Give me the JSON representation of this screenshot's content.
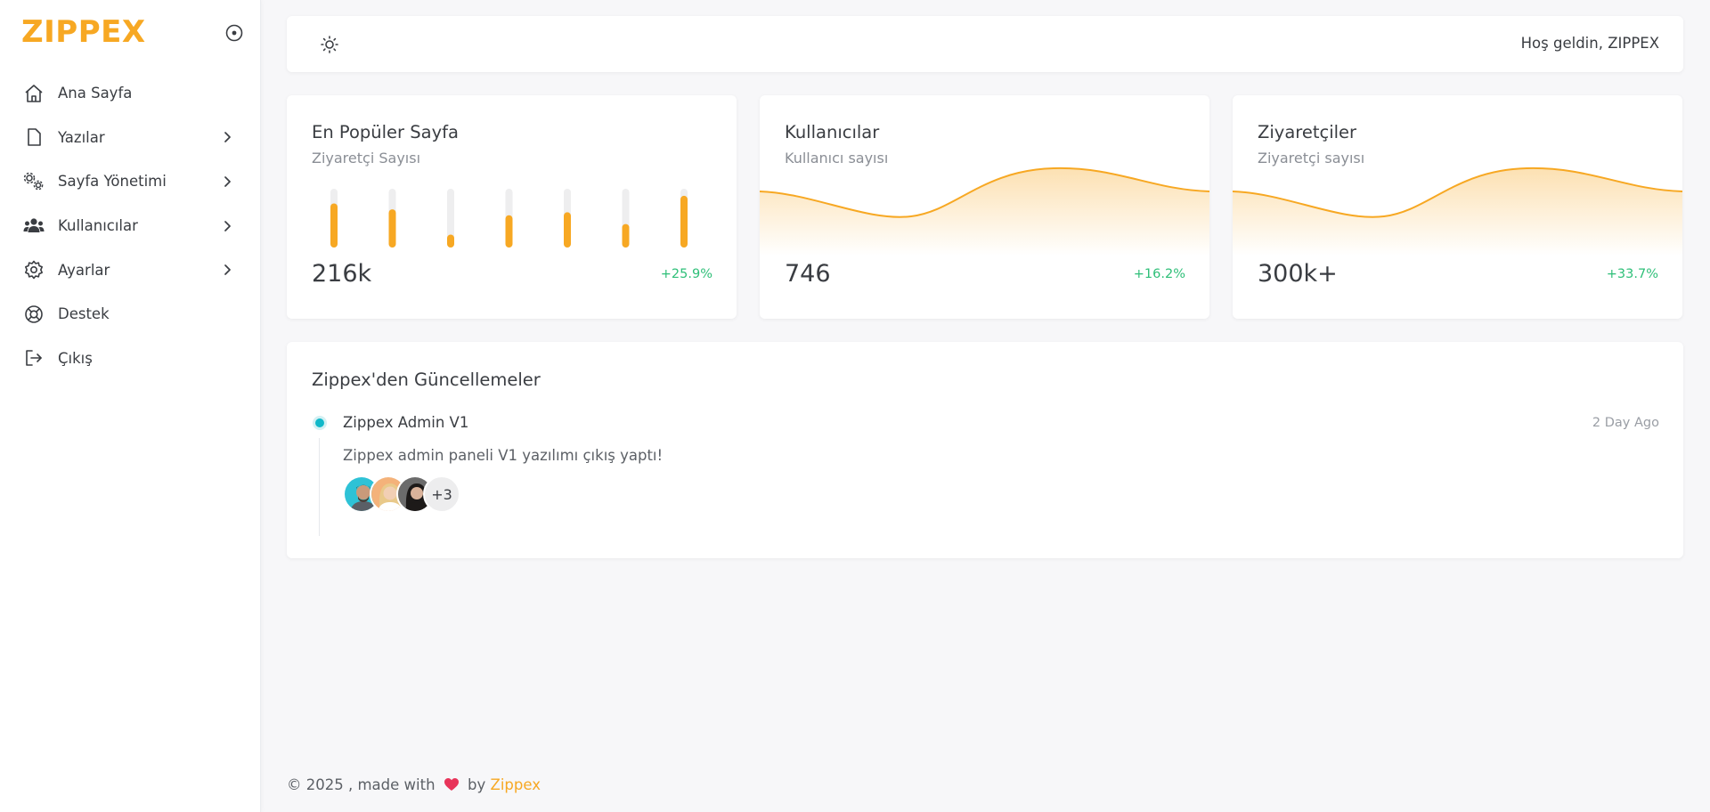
{
  "app": {
    "brand": "ZIPPEX",
    "accent_color": "#f7a823"
  },
  "sidebar": {
    "items": [
      {
        "label": "Ana Sayfa",
        "icon": "home-icon",
        "has_submenu": false
      },
      {
        "label": "Yazılar",
        "icon": "file-icon",
        "has_submenu": true
      },
      {
        "label": "Sayfa Yönetimi",
        "icon": "cogs-icon",
        "has_submenu": true
      },
      {
        "label": "Kullanıcılar",
        "icon": "users-icon",
        "has_submenu": true
      },
      {
        "label": "Ayarlar",
        "icon": "gear-icon",
        "has_submenu": true
      },
      {
        "label": "Destek",
        "icon": "lifebuoy-icon",
        "has_submenu": false
      },
      {
        "label": "Çıkış",
        "icon": "logout-icon",
        "has_submenu": false
      }
    ]
  },
  "header": {
    "welcome": "Hoş geldin, ZIPPEX",
    "theme_icon": "sun-icon"
  },
  "cards": [
    {
      "title": "En Popüler Sayfa",
      "subtitle": "Ziyaretçi Sayısı",
      "value": "216k",
      "delta": "+25.9%",
      "chart": {
        "type": "bar",
        "fill_ratios": [
          0.75,
          0.65,
          0.22,
          0.55,
          0.6,
          0.4,
          0.88
        ]
      }
    },
    {
      "title": "Kullanıcılar",
      "subtitle": "Kullanıcı sayısı",
      "value": "746",
      "delta": "+16.2%",
      "chart": {
        "type": "area"
      }
    },
    {
      "title": "Ziyaretçiler",
      "subtitle": "Ziyaretçi sayısı",
      "value": "300k+",
      "delta": "+33.7%",
      "chart": {
        "type": "area"
      }
    }
  ],
  "updates": {
    "title": "Zippex'den Güncellemeler",
    "items": [
      {
        "title": "Zippex Admin V1",
        "time": "2 Day Ago",
        "description": "Zippex admin paneli V1 yazılımı çıkış yaptı!",
        "avatars_more": "+3"
      }
    ]
  },
  "footer": {
    "prefix": "© 2025 , made with",
    "by": "by",
    "brand": "Zippex",
    "heart_color": "#e8345a"
  },
  "colors": {
    "positive": "#2ebf78",
    "timeline_dot": "#11b8c9"
  }
}
